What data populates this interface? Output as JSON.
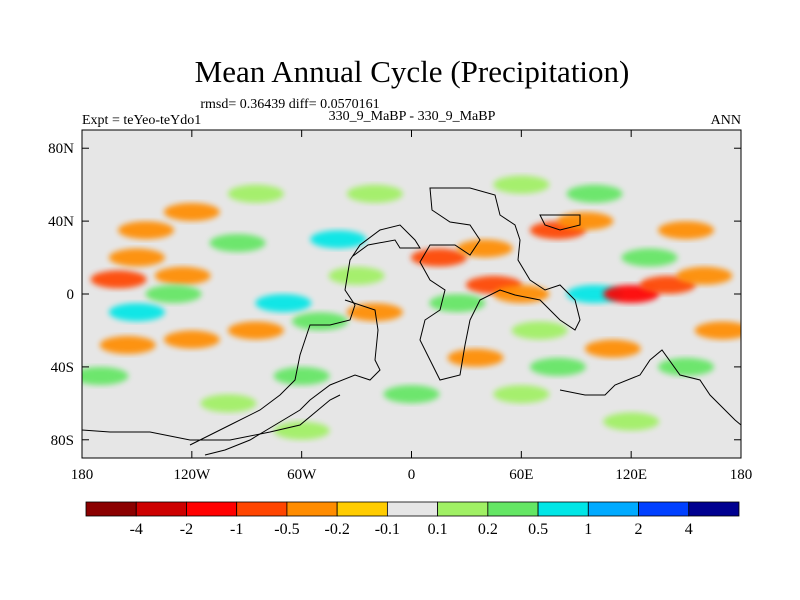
{
  "chart_data": {
    "type": "heatmap",
    "title": "Mean Annual Cycle (Precipitation)",
    "stats": "rmsd= 0.36439  diff= 0.0570161",
    "left_label": "Expt = teYeo-teYdo1",
    "center_label": "330_9_MaBP - 330_9_MaBP",
    "right_label": "ANN",
    "x_ticks": [
      "180",
      "120W",
      "60W",
      "0",
      "60E",
      "120E",
      "180"
    ],
    "x_tick_values": [
      -180,
      -120,
      -60,
      0,
      60,
      120,
      180
    ],
    "y_ticks": [
      "80N",
      "40N",
      "0",
      "40S",
      "80S"
    ],
    "y_tick_values": [
      80,
      40,
      0,
      -40,
      -80
    ],
    "xlim": [
      -180,
      180
    ],
    "ylim": [
      -90,
      90
    ],
    "colorbar": {
      "colors": [
        "#8b0000",
        "#cd0000",
        "#ff0000",
        "#ff4500",
        "#ff8c00",
        "#ffcc00",
        "#e6e6e6",
        "#a0f064",
        "#64e664",
        "#00e6e6",
        "#00aaff",
        "#0040ff",
        "#000090"
      ],
      "labels": [
        "-4",
        "-2",
        "-1",
        "-0.5",
        "-0.2",
        "-0.1",
        "0.1",
        "0.2",
        "0.5",
        "1",
        "2",
        "4"
      ]
    },
    "field_patches": [
      {
        "lon": -160,
        "lat": 8,
        "value": -0.6
      },
      {
        "lon": -125,
        "lat": 10,
        "value": -0.3
      },
      {
        "lon": -150,
        "lat": 20,
        "value": -0.3
      },
      {
        "lon": -130,
        "lat": 0,
        "value": 0.3
      },
      {
        "lon": -150,
        "lat": -10,
        "value": 0.6
      },
      {
        "lon": -120,
        "lat": -25,
        "value": -0.3
      },
      {
        "lon": -155,
        "lat": -28,
        "value": -0.5
      },
      {
        "lon": -170,
        "lat": -45,
        "value": 0.3
      },
      {
        "lon": -120,
        "lat": 45,
        "value": -0.3
      },
      {
        "lon": -145,
        "lat": 35,
        "value": -0.5
      },
      {
        "lon": -85,
        "lat": 55,
        "value": 0.15
      },
      {
        "lon": -95,
        "lat": 28,
        "value": 0.3
      },
      {
        "lon": -70,
        "lat": -5,
        "value": 0.6
      },
      {
        "lon": -85,
        "lat": -20,
        "value": -0.3
      },
      {
        "lon": -60,
        "lat": -45,
        "value": 0.3
      },
      {
        "lon": -50,
        "lat": -15,
        "value": 0.3
      },
      {
        "lon": -30,
        "lat": 10,
        "value": 0.15
      },
      {
        "lon": -40,
        "lat": 30,
        "value": 0.6
      },
      {
        "lon": -20,
        "lat": -10,
        "value": -0.3
      },
      {
        "lon": 15,
        "lat": 20,
        "value": -0.6
      },
      {
        "lon": 40,
        "lat": 25,
        "value": -0.3
      },
      {
        "lon": 45,
        "lat": 5,
        "value": -0.6
      },
      {
        "lon": 25,
        "lat": -5,
        "value": 0.3
      },
      {
        "lon": 60,
        "lat": 0,
        "value": -0.3
      },
      {
        "lon": 80,
        "lat": 35,
        "value": -0.6
      },
      {
        "lon": 95,
        "lat": 40,
        "value": -0.3
      },
      {
        "lon": 100,
        "lat": 0,
        "value": 0.8
      },
      {
        "lon": 120,
        "lat": 0,
        "value": -1.2
      },
      {
        "lon": 140,
        "lat": 5,
        "value": -0.6
      },
      {
        "lon": 160,
        "lat": 10,
        "value": -0.3
      },
      {
        "lon": 130,
        "lat": 20,
        "value": 0.3
      },
      {
        "lon": 150,
        "lat": 35,
        "value": -0.3
      },
      {
        "lon": 70,
        "lat": -20,
        "value": 0.15
      },
      {
        "lon": 110,
        "lat": -30,
        "value": -0.3
      },
      {
        "lon": 150,
        "lat": -40,
        "value": 0.3
      },
      {
        "lon": 60,
        "lat": -55,
        "value": 0.15
      },
      {
        "lon": 0,
        "lat": -55,
        "value": 0.3
      },
      {
        "lon": -100,
        "lat": -60,
        "value": 0.15
      },
      {
        "lon": -60,
        "lat": -75,
        "value": 0.15
      },
      {
        "lon": 120,
        "lat": -70,
        "value": 0.15
      },
      {
        "lon": 60,
        "lat": 60,
        "value": 0.15
      },
      {
        "lon": 100,
        "lat": 55,
        "value": 0.3
      },
      {
        "lon": -20,
        "lat": 55,
        "value": 0.15
      },
      {
        "lon": 35,
        "lat": -35,
        "value": -0.3
      },
      {
        "lon": 80,
        "lat": -40,
        "value": 0.3
      },
      {
        "lon": 170,
        "lat": -20,
        "value": -0.3
      }
    ]
  }
}
